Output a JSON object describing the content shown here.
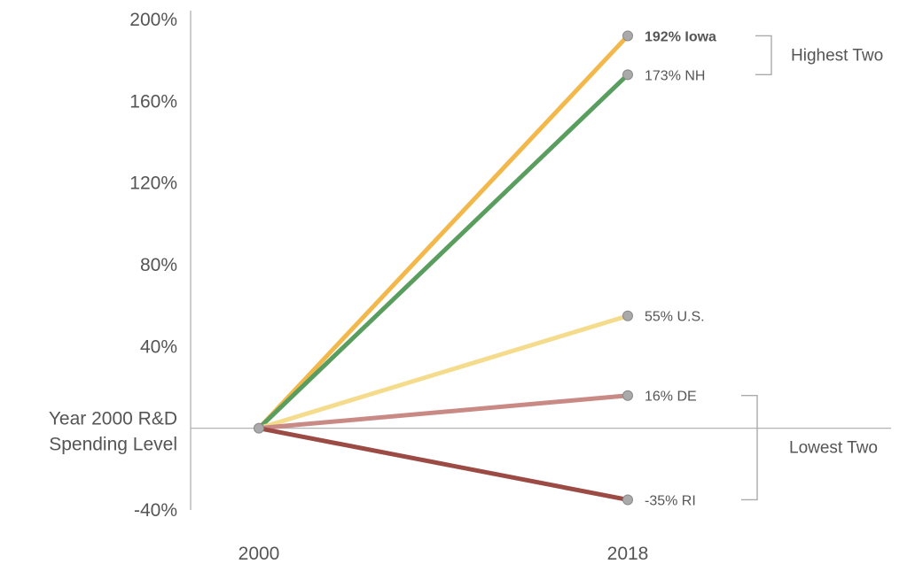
{
  "chart_data": {
    "type": "line",
    "x": [
      "2000",
      "2018"
    ],
    "ylim": [
      -40,
      200
    ],
    "y_ticks": [
      {
        "value": 200,
        "label": "200%"
      },
      {
        "value": 160,
        "label": "160%"
      },
      {
        "value": 120,
        "label": "120%"
      },
      {
        "value": 80,
        "label": "80%"
      },
      {
        "value": 40,
        "label": "40%"
      },
      {
        "value": -40,
        "label": "-40%"
      }
    ],
    "baseline_label": [
      "Year 2000 R&D",
      "Spending Level"
    ],
    "series": [
      {
        "key": "iowa",
        "values": [
          0,
          192
        ],
        "color": "#f2b84b",
        "end_label": "192% Iowa",
        "bold": true
      },
      {
        "key": "nh",
        "values": [
          0,
          173
        ],
        "color": "#5a9e5f",
        "end_label": "173% NH",
        "bold": false
      },
      {
        "key": "us",
        "values": [
          0,
          55
        ],
        "color": "#f4dc8c",
        "end_label": "55% U.S.",
        "bold": false
      },
      {
        "key": "de",
        "values": [
          0,
          16
        ],
        "color": "#c98a86",
        "end_label": "16% DE",
        "bold": false
      },
      {
        "key": "ri",
        "values": [
          0,
          -35
        ],
        "color": "#9b4a44",
        "end_label": "-35% RI",
        "bold": false
      }
    ],
    "groups": [
      {
        "label": "Highest Two",
        "members": [
          "iowa",
          "nh"
        ]
      },
      {
        "label": "Lowest Two",
        "members": [
          "de",
          "ri"
        ]
      }
    ],
    "grid": false,
    "colors": {
      "axis": "#aaaaaa",
      "point_fill": "#aaaaaa",
      "point_stroke": "#888888",
      "bracket": "#aaaaaa"
    }
  }
}
